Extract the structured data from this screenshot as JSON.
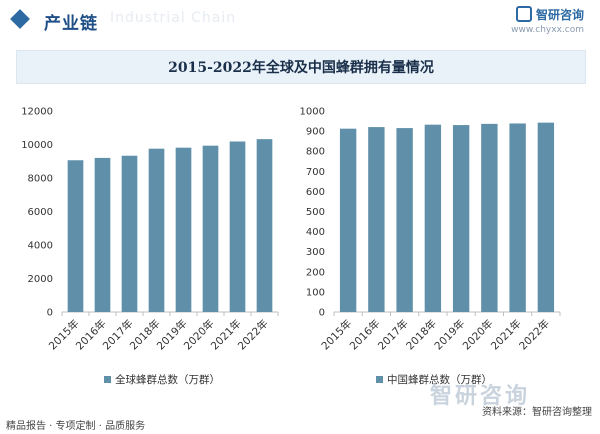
{
  "header": {
    "title": "产业链",
    "watermark": "Industrial Chain"
  },
  "brand": {
    "name": "智研咨询",
    "url": "www.chyxx.com"
  },
  "chart_title": "2015-2022年全球及中国蜂群拥有量情况",
  "footer": {
    "left": "精品报告 · 专项定制 · 品质服务",
    "source": "资料来源：智研咨询整理",
    "watermark": "智研咨询"
  },
  "colors": {
    "bar": "#5f8fa9",
    "axis": "#bfbfbf",
    "title_bg": "#eaf2f9",
    "accent": "#2d6aa3"
  },
  "chart_data": [
    {
      "type": "bar",
      "title": "",
      "categories": [
        "2015年",
        "2016年",
        "2017年",
        "2018年",
        "2019年",
        "2020年",
        "2021年",
        "2022年"
      ],
      "series": [
        {
          "name": "全球蜂群总数（万群）",
          "values": [
            9060,
            9200,
            9330,
            9750,
            9810,
            9930,
            10180,
            10320
          ]
        }
      ],
      "ylim": [
        0,
        12000
      ],
      "yticks": [
        "0",
        "2000",
        "4000",
        "6000",
        "8000",
        "10000",
        "12000"
      ],
      "legend": "bottom",
      "grid": false
    },
    {
      "type": "bar",
      "title": "",
      "categories": [
        "2015年",
        "2016年",
        "2017年",
        "2018年",
        "2019年",
        "2020年",
        "2021年",
        "2022年"
      ],
      "series": [
        {
          "name": "中国蜂群总数（万群）",
          "values": [
            912,
            920,
            915,
            932,
            930,
            936,
            938,
            942
          ]
        }
      ],
      "ylim": [
        0,
        1000
      ],
      "yticks": [
        "0",
        "100",
        "200",
        "300",
        "400",
        "500",
        "600",
        "700",
        "800",
        "900",
        "1000"
      ],
      "legend": "bottom",
      "grid": false
    }
  ]
}
